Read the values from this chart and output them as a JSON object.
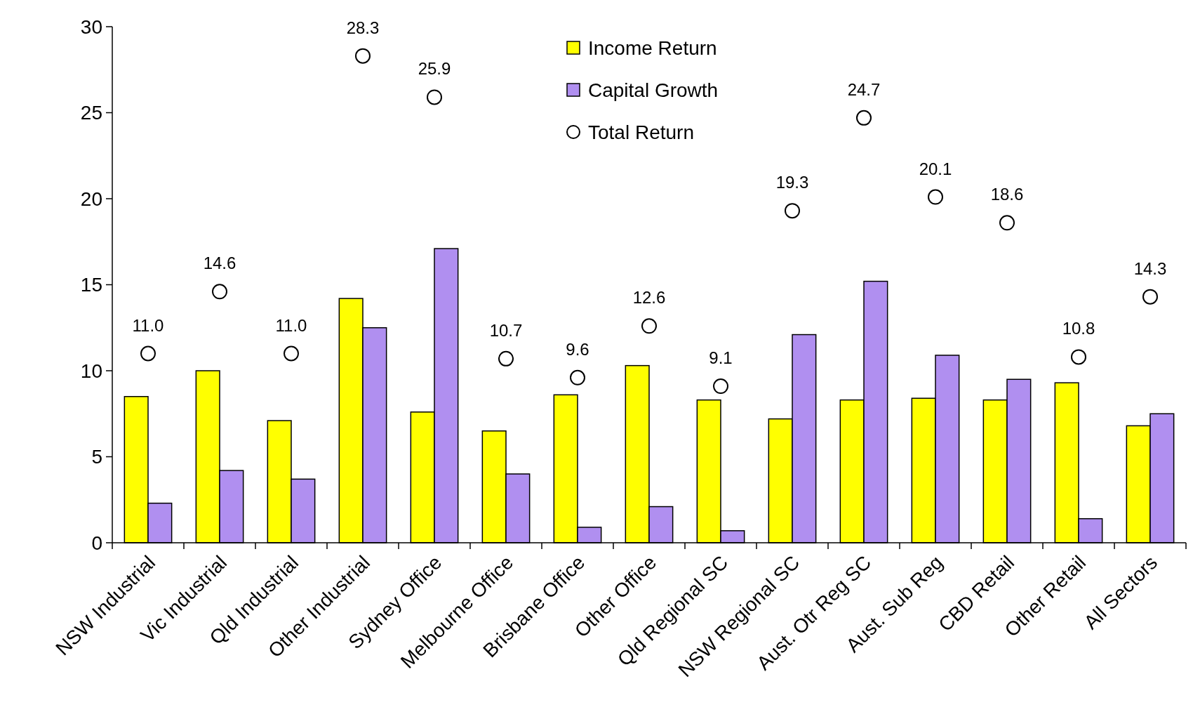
{
  "chart_data": {
    "type": "bar",
    "categories": [
      "NSW Industrial",
      "Vic Industrial",
      "Qld Industrial",
      "Other Industrial",
      "Sydney Office",
      "Melbourne Office",
      "Brisbane Office",
      "Other Office",
      "Qld Regional SC",
      "NSW Regional SC",
      "Aust. Otr Reg SC",
      "Aust. Sub Reg",
      "CBD Retail",
      "Other Retail",
      "All Sectors"
    ],
    "series": [
      {
        "name": "Income Return",
        "color": "#ffff00",
        "values": [
          8.5,
          10.0,
          7.1,
          14.2,
          7.6,
          6.5,
          8.6,
          10.3,
          8.3,
          7.2,
          8.3,
          8.4,
          8.3,
          9.3,
          6.8
        ]
      },
      {
        "name": "Capital Growth",
        "color": "#b08ff0",
        "values": [
          2.3,
          4.2,
          3.7,
          12.5,
          17.1,
          4.0,
          0.9,
          2.1,
          0.7,
          12.1,
          15.2,
          10.9,
          9.5,
          1.4,
          7.5
        ]
      },
      {
        "name": "Total Return",
        "type": "scatter",
        "color": "#000000",
        "marker": "circle",
        "values": [
          11.0,
          14.6,
          11.0,
          28.3,
          25.9,
          10.7,
          9.6,
          12.6,
          9.1,
          19.3,
          24.7,
          20.1,
          18.6,
          10.8,
          14.3
        ],
        "value_labels": [
          "11.0",
          "14.6",
          "11.0",
          "28.3",
          "25.9",
          "10.7",
          "9.6",
          "12.6",
          "9.1",
          "19.3",
          "24.7",
          "20.1",
          "18.6",
          "10.8",
          "14.3"
        ]
      }
    ],
    "ylim": [
      0,
      30
    ],
    "yticks": [
      0,
      5,
      10,
      15,
      20,
      25,
      30
    ],
    "grid": false,
    "legend": "top"
  }
}
